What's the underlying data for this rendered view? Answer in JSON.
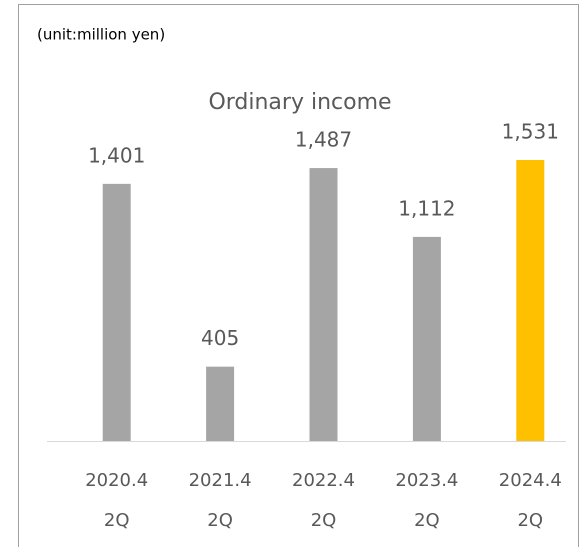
{
  "chart_data": {
    "type": "bar",
    "title": "Ordinary income",
    "subtitle": "(unit:million yen)",
    "categories": [
      [
        "2020.4",
        "2Q"
      ],
      [
        "2021.4",
        "2Q"
      ],
      [
        "2022.4",
        "2Q"
      ],
      [
        "2023.4",
        "2Q"
      ],
      [
        "2024.4",
        "2Q"
      ]
    ],
    "values": [
      1401,
      405,
      1487,
      1112,
      1531
    ],
    "value_labels": [
      "1,401",
      "405",
      "1,487",
      "1,112",
      "1,531"
    ],
    "colors": [
      "#a5a5a5",
      "#a5a5a5",
      "#a5a5a5",
      "#a5a5a5",
      "#ffc000"
    ]
  }
}
